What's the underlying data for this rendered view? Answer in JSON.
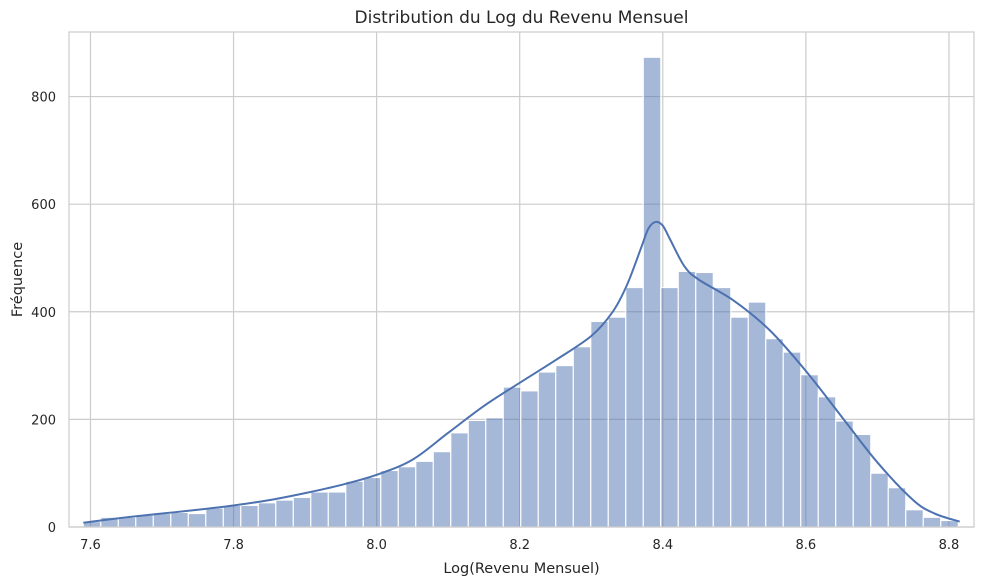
{
  "chart_data": {
    "type": "histogram",
    "title": "Distribution du Log du Revenu Mensuel",
    "xlabel": "Log(Revenu Mensuel)",
    "ylabel": "Fréquence",
    "xlim": [
      7.57,
      8.835
    ],
    "ylim": [
      0,
      920
    ],
    "x_ticks": [
      7.6,
      7.8,
      8.0,
      8.2,
      8.4,
      8.6,
      8.8
    ],
    "x_tick_labels": [
      "7.6",
      "7.8",
      "8.0",
      "8.2",
      "8.4",
      "8.6",
      "8.8"
    ],
    "y_ticks": [
      0,
      200,
      400,
      600,
      800
    ],
    "y_tick_labels": [
      "0",
      "200",
      "400",
      "600",
      "800"
    ],
    "grid": true,
    "bin_start": 7.59,
    "bin_width": 0.02446,
    "counts": [
      10,
      18,
      18,
      22,
      25,
      27,
      25,
      35,
      40,
      40,
      45,
      50,
      55,
      65,
      65,
      85,
      92,
      105,
      112,
      122,
      140,
      175,
      198,
      203,
      260,
      253,
      288,
      300,
      335,
      382,
      390,
      445,
      873,
      445,
      475,
      473,
      445,
      390,
      418,
      350,
      325,
      283,
      242,
      197,
      172,
      100,
      73,
      32,
      18,
      12
    ],
    "kde": {
      "x": [
        7.59,
        7.65,
        7.7,
        7.75,
        7.8,
        7.85,
        7.9,
        7.95,
        8.0,
        8.05,
        8.1,
        8.15,
        8.2,
        8.25,
        8.3,
        8.33,
        8.35,
        8.37,
        8.38,
        8.39,
        8.4,
        8.41,
        8.43,
        8.45,
        8.5,
        8.55,
        8.6,
        8.65,
        8.7,
        8.75,
        8.78,
        8.815
      ],
      "y": [
        8,
        18,
        25,
        32,
        40,
        50,
        63,
        78,
        97,
        125,
        175,
        225,
        268,
        310,
        355,
        400,
        450,
        520,
        555,
        567,
        560,
        535,
        485,
        460,
        420,
        365,
        290,
        205,
        120,
        50,
        25,
        10
      ]
    }
  }
}
